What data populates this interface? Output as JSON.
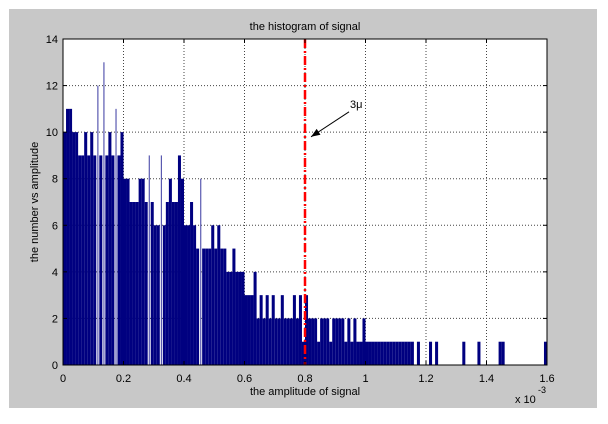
{
  "chart_data": {
    "type": "bar",
    "title": "the histogram of signal",
    "xlabel": "the amplitude of signal",
    "ylabel": "the number vs  amplitude",
    "x_exponent_label": "x 10",
    "x_exponent": "-3",
    "xlim": [
      0,
      1.6
    ],
    "ylim": [
      0,
      14
    ],
    "xticks": [
      "0",
      "0.2",
      "0.4",
      "0.6",
      "0.8",
      "1",
      "1.2",
      "1.4",
      "1.6"
    ],
    "yticks": [
      "0",
      "2",
      "4",
      "6",
      "8",
      "10",
      "12",
      "14"
    ],
    "grid": true,
    "bin_width": 0.01,
    "bin_start": 0,
    "counts": [
      10,
      11,
      11,
      10,
      10,
      9,
      9,
      10,
      9,
      10,
      9,
      12,
      9,
      13,
      9,
      10,
      9,
      11,
      9,
      10,
      8,
      8,
      7,
      7,
      7,
      8,
      8,
      7,
      9,
      7,
      6,
      6,
      9,
      6,
      7,
      8,
      7,
      7,
      9,
      8,
      6,
      6,
      7,
      6,
      5,
      8,
      5,
      5,
      5,
      6,
      5,
      6,
      5,
      5,
      4,
      4,
      5,
      4,
      4,
      4,
      3,
      3,
      3,
      4,
      2,
      3,
      2,
      3,
      2,
      3,
      2,
      2,
      3,
      2,
      2,
      2,
      3,
      2,
      3,
      1,
      3,
      2,
      2,
      2,
      1,
      2,
      2,
      2,
      1,
      2,
      2,
      2,
      2,
      1,
      2,
      1,
      2,
      1,
      1,
      2,
      1,
      1,
      1,
      1,
      1,
      1,
      1,
      1,
      1,
      1,
      1,
      1,
      1,
      1,
      1,
      1,
      0,
      1,
      0,
      0,
      0,
      1,
      0,
      1,
      0,
      0,
      0,
      0,
      0,
      0,
      0,
      0,
      1,
      0,
      0,
      0,
      0,
      1,
      0,
      0,
      0,
      0,
      0,
      0,
      1,
      1,
      0,
      0,
      0,
      0,
      0,
      0,
      0,
      0,
      0,
      0,
      0,
      0,
      0,
      1
    ],
    "threshold_line": {
      "x": 0.8,
      "color": "#ff0000",
      "style": "dash-dot"
    },
    "annotation": {
      "text": "3μ",
      "arrow_to": {
        "x": 0.82,
        "y": 9.8
      }
    },
    "colors": {
      "bars": "#000080",
      "figure_bg": "#c8c8c8",
      "axes_bg": "#ffffff"
    }
  }
}
